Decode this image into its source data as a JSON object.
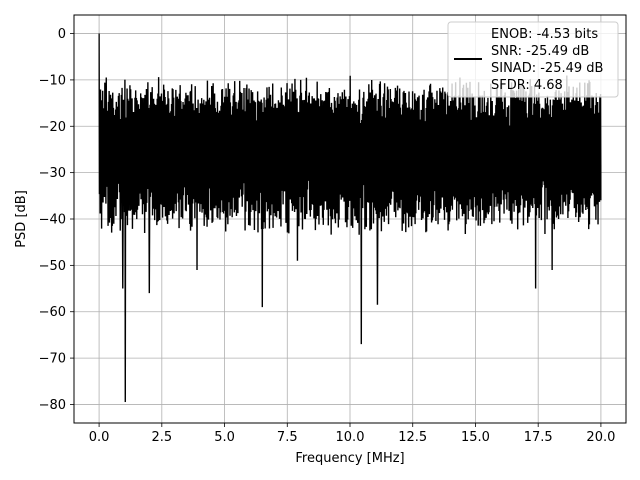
{
  "chart_data": {
    "type": "line",
    "title": "",
    "xlabel": "Frequency [MHz]",
    "ylabel": "PSD [dB]",
    "xlim": [
      -1,
      21
    ],
    "ylim": [
      -84,
      4
    ],
    "x_ticks": [
      0.0,
      2.5,
      5.0,
      7.5,
      10.0,
      12.5,
      15.0,
      17.5,
      20.0
    ],
    "x_tick_labels": [
      "0.0",
      "2.5",
      "5.0",
      "7.5",
      "10.0",
      "12.5",
      "15.0",
      "17.5",
      "20.0"
    ],
    "y_ticks": [
      0,
      -10,
      -20,
      -30,
      -40,
      -50,
      -60,
      -70,
      -80
    ],
    "y_tick_labels": [
      "0",
      "−10",
      "−20",
      "−30",
      "−40",
      "−50",
      "−60",
      "−70",
      "−80"
    ],
    "grid": true,
    "legend": {
      "placement": "top-right",
      "entries": [
        "ENOB: -4.53 bits",
        "SNR: -25.49 dB",
        "SINAD: -25.49 dB",
        "SFDR: 4.68"
      ]
    },
    "series": [
      {
        "name": "ENOB: -4.53 bits\nSNR: -25.49 dB\nSINAD: -25.49 dB\nSFDR: 4.68",
        "color": "#000000",
        "x_range": [
          0,
          20
        ],
        "upper_envelope_dB": -12,
        "lower_envelope_dB": -36,
        "peaks": [
          {
            "x": 0.0,
            "y": 0.0
          }
        ],
        "dips": [
          {
            "x": 0.95,
            "y": -55
          },
          {
            "x": 1.05,
            "y": -79.5
          },
          {
            "x": 2.0,
            "y": -56
          },
          {
            "x": 3.9,
            "y": -51
          },
          {
            "x": 6.5,
            "y": -59
          },
          {
            "x": 7.9,
            "y": -49
          },
          {
            "x": 10.45,
            "y": -67
          },
          {
            "x": 11.1,
            "y": -58.5
          },
          {
            "x": 17.4,
            "y": -55
          },
          {
            "x": 18.05,
            "y": -51
          }
        ]
      }
    ]
  }
}
